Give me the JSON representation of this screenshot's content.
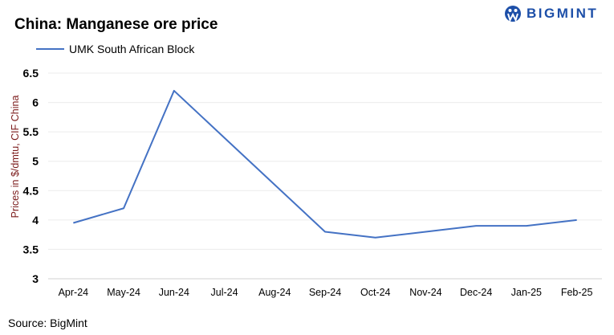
{
  "title": "China: Manganese ore price",
  "logo": {
    "text": "BIGMINT",
    "color": "#1d4fa8"
  },
  "source": "Source: BigMint",
  "chart_data": {
    "type": "line",
    "title": "China: Manganese ore price",
    "xlabel": "",
    "ylabel": "Prices in $/dmtu, CIF China",
    "categories": [
      "Apr-24",
      "May-24",
      "Jun-24",
      "Jul-24",
      "Aug-24",
      "Sep-24",
      "Oct-24",
      "Nov-24",
      "Dec-24",
      "Jan-25",
      "Feb-25"
    ],
    "series": [
      {
        "name": "UMK South African Block",
        "color": "#4472c4",
        "values": [
          3.95,
          4.2,
          6.2,
          5.4,
          4.6,
          3.8,
          3.7,
          3.8,
          3.9,
          3.9,
          4.0
        ]
      }
    ],
    "ylim": [
      3,
      6.5
    ],
    "yticks": [
      "3",
      "3.5",
      "4",
      "4.5",
      "5",
      "5.5",
      "6",
      "6.5"
    ],
    "grid": true,
    "legend": "top-left"
  }
}
